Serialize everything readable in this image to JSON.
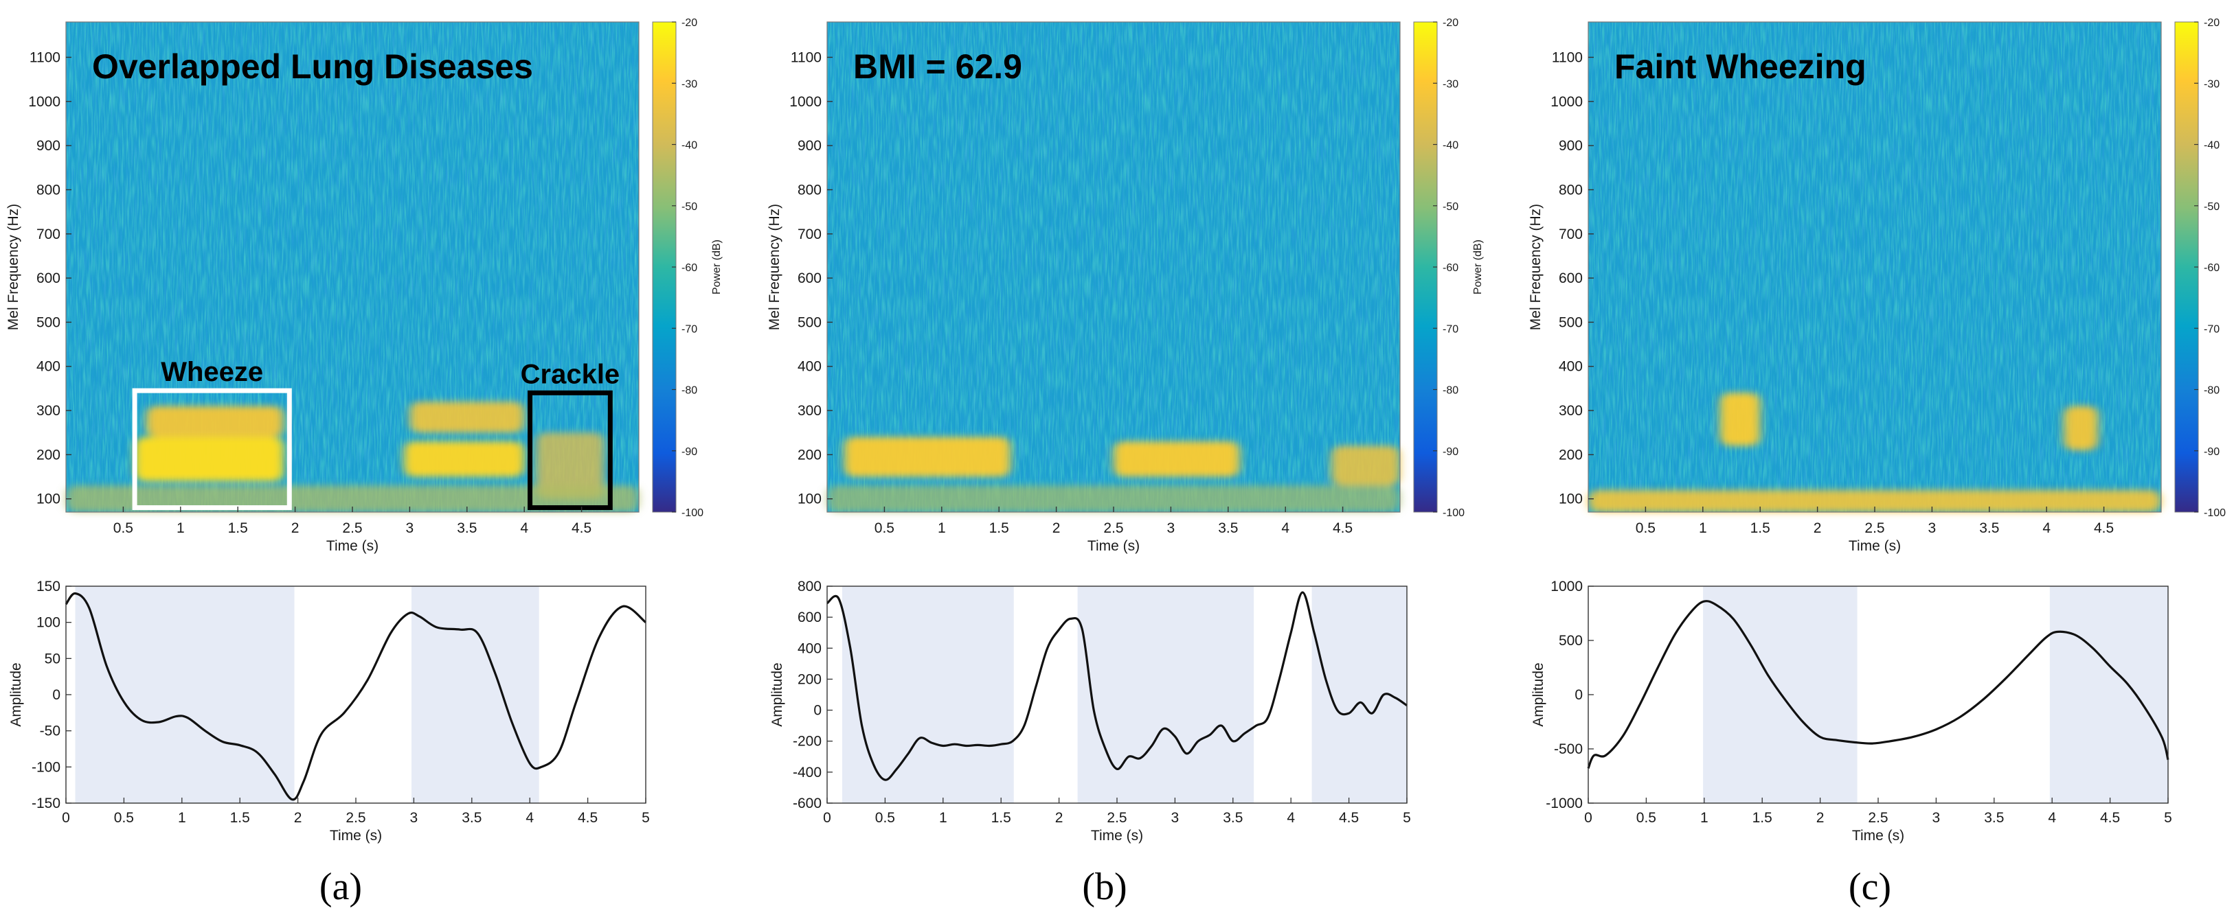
{
  "chart_data": [
    {
      "type": "heatmap",
      "panel": "a",
      "title": "Overlapped Lung Diseases",
      "xlabel": "Time (s)",
      "ylabel": "Mel Frequency (Hz)",
      "xticks": [
        0.5,
        1,
        1.5,
        2,
        2.5,
        3,
        3.5,
        4,
        4.5
      ],
      "xticklabels": [
        "0.5",
        "1",
        "1.5",
        "2",
        "2.5",
        "3",
        "3.5",
        "4",
        "4.5"
      ],
      "yticks": [
        100,
        200,
        300,
        400,
        500,
        600,
        700,
        800,
        900,
        1000,
        1100
      ],
      "yticklabels": [
        "100",
        "200",
        "300",
        "400",
        "500",
        "600",
        "700",
        "800",
        "900",
        "1000",
        "1100"
      ],
      "xlim": [
        0,
        5
      ],
      "ylim": [
        70,
        1180
      ],
      "colorbar": {
        "label": "Power (dB)",
        "range": [
          -100,
          -20
        ],
        "ticks": [
          "-20",
          "-30",
          "-40",
          "-50",
          "-60",
          "-70",
          "-80",
          "-90",
          "-100"
        ]
      },
      "bands": [
        {
          "t0": 0.6,
          "t1": 1.9,
          "f0": 140,
          "f1": 240,
          "level": 0.95
        },
        {
          "t0": 0.7,
          "t1": 1.9,
          "f0": 240,
          "f1": 310,
          "level": 0.8
        },
        {
          "t0": 2.95,
          "t1": 4.0,
          "f0": 150,
          "f1": 230,
          "level": 0.9
        },
        {
          "t0": 3.0,
          "t1": 4.0,
          "f0": 250,
          "f1": 320,
          "level": 0.75
        },
        {
          "t0": 4.1,
          "t1": 4.7,
          "f0": 100,
          "f1": 250,
          "level": 0.55
        },
        {
          "t0": 0.0,
          "t1": 5.0,
          "f0": 70,
          "f1": 130,
          "level": 0.35
        }
      ],
      "annotations": [
        {
          "label": "Wheeze",
          "t0": 0.6,
          "t1": 1.95,
          "f0": 80,
          "f1": 345,
          "color": "#ffffff"
        },
        {
          "label": "Crackle",
          "t0": 4.05,
          "t1": 4.75,
          "f0": 80,
          "f1": 340,
          "color": "#000000"
        }
      ]
    },
    {
      "type": "heatmap",
      "panel": "b",
      "title": "BMI = 62.9",
      "xlabel": "Time (s)",
      "ylabel": "Mel Frequency (Hz)",
      "xticks": [
        0.5,
        1,
        1.5,
        2,
        2.5,
        3,
        3.5,
        4,
        4.5
      ],
      "xticklabels": [
        "0.5",
        "1",
        "1.5",
        "2",
        "2.5",
        "3",
        "3.5",
        "4",
        "4.5"
      ],
      "yticks": [
        100,
        200,
        300,
        400,
        500,
        600,
        700,
        800,
        900,
        1000,
        1100
      ],
      "yticklabels": [
        "100",
        "200",
        "300",
        "400",
        "500",
        "600",
        "700",
        "800",
        "900",
        "1000",
        "1100"
      ],
      "xlim": [
        0,
        5
      ],
      "ylim": [
        70,
        1180
      ],
      "colorbar": {
        "label": "Power (dB)",
        "range": [
          -100,
          -20
        ],
        "ticks": [
          "-20",
          "-30",
          "-40",
          "-50",
          "-60",
          "-70",
          "-80",
          "-90",
          "-100"
        ]
      },
      "bands": [
        {
          "t0": 0.15,
          "t1": 1.6,
          "f0": 150,
          "f1": 240,
          "level": 0.85
        },
        {
          "t0": 2.5,
          "t1": 3.6,
          "f0": 150,
          "f1": 230,
          "level": 0.85
        },
        {
          "t0": 4.4,
          "t1": 5.0,
          "f0": 130,
          "f1": 220,
          "level": 0.7
        },
        {
          "t0": 0.0,
          "t1": 5.0,
          "f0": 70,
          "f1": 130,
          "level": 0.3
        }
      ],
      "annotations": []
    },
    {
      "type": "heatmap",
      "panel": "c",
      "title": "Faint Wheezing",
      "xlabel": "Time (s)",
      "ylabel": "Mel Frequency (Hz)",
      "xticks": [
        0.5,
        1,
        1.5,
        2,
        2.5,
        3,
        3.5,
        4,
        4.5
      ],
      "xticklabels": [
        "0.5",
        "1",
        "1.5",
        "2",
        "2.5",
        "3",
        "3.5",
        "4",
        "4.5"
      ],
      "yticks": [
        100,
        200,
        300,
        400,
        500,
        600,
        700,
        800,
        900,
        1000,
        1100
      ],
      "yticklabels": [
        "100",
        "200",
        "300",
        "400",
        "500",
        "600",
        "700",
        "800",
        "900",
        "1000",
        "1100"
      ],
      "xlim": [
        0,
        5
      ],
      "ylim": [
        70,
        1180
      ],
      "colorbar": {
        "label": "",
        "range": [
          -100,
          -20
        ],
        "ticks": [
          "-20",
          "-30",
          "-40",
          "-50",
          "-60",
          "-70",
          "-80",
          "-90",
          "-100"
        ]
      },
      "bands": [
        {
          "t0": 1.15,
          "t1": 1.5,
          "f0": 220,
          "f1": 340,
          "level": 0.85
        },
        {
          "t0": 4.15,
          "t1": 4.45,
          "f0": 210,
          "f1": 310,
          "level": 0.8
        },
        {
          "t0": 0.0,
          "t1": 5.0,
          "f0": 70,
          "f1": 120,
          "level": 0.75
        }
      ],
      "annotations": []
    },
    {
      "type": "line",
      "panel": "a",
      "xlabel": "Time (s)",
      "ylabel": "Amplitude",
      "xlim": [
        0,
        5
      ],
      "ylim": [
        -150,
        150
      ],
      "xticks": [
        "0",
        "0.5",
        "1",
        "1.5",
        "2",
        "2.5",
        "3",
        "3.5",
        "4",
        "4.5",
        "5"
      ],
      "yticks": [
        "150",
        "100",
        "50",
        "0",
        "-50",
        "-100",
        "-150"
      ],
      "shaded_regions": [
        [
          0.08,
          1.97
        ],
        [
          2.98,
          4.08
        ]
      ],
      "x": [
        0,
        0.08,
        0.2,
        0.35,
        0.5,
        0.65,
        0.8,
        0.95,
        1.05,
        1.2,
        1.35,
        1.5,
        1.65,
        1.8,
        1.95,
        2.05,
        2.2,
        2.4,
        2.6,
        2.8,
        2.95,
        3.05,
        3.2,
        3.4,
        3.55,
        3.7,
        3.85,
        4.0,
        4.1,
        4.25,
        4.4,
        4.6,
        4.8,
        5.0
      ],
      "y": [
        125,
        140,
        120,
        40,
        -10,
        -35,
        -38,
        -30,
        -32,
        -50,
        -65,
        -70,
        -80,
        -110,
        -145,
        -120,
        -55,
        -25,
        20,
        85,
        112,
        108,
        93,
        90,
        85,
        30,
        -40,
        -95,
        -100,
        -80,
        -10,
        80,
        122,
        100
      ]
    },
    {
      "type": "line",
      "panel": "b",
      "xlabel": "Time (s)",
      "ylabel": "Amplitude",
      "xlim": [
        0,
        5
      ],
      "ylim": [
        -600,
        800
      ],
      "xticks": [
        "0",
        "0.5",
        "1",
        "1.5",
        "2",
        "2.5",
        "3",
        "3.5",
        "4",
        "4.5",
        "5"
      ],
      "yticks": [
        "800",
        "600",
        "400",
        "200",
        "0",
        "-200",
        "-400",
        "-600"
      ],
      "shaded_regions": [
        [
          0.13,
          1.61
        ],
        [
          2.16,
          3.68
        ],
        [
          4.18,
          5.0
        ]
      ],
      "x": [
        0,
        0.1,
        0.2,
        0.3,
        0.4,
        0.5,
        0.6,
        0.7,
        0.8,
        0.9,
        1.0,
        1.1,
        1.2,
        1.3,
        1.4,
        1.5,
        1.6,
        1.7,
        1.8,
        1.9,
        2.0,
        2.1,
        2.2,
        2.3,
        2.4,
        2.5,
        2.6,
        2.7,
        2.8,
        2.9,
        3.0,
        3.1,
        3.2,
        3.3,
        3.4,
        3.5,
        3.6,
        3.7,
        3.8,
        3.9,
        4.0,
        4.1,
        4.2,
        4.3,
        4.4,
        4.5,
        4.6,
        4.7,
        4.8,
        4.9,
        5.0
      ],
      "y": [
        690,
        720,
        400,
        -100,
        -350,
        -450,
        -380,
        -280,
        -180,
        -210,
        -230,
        -220,
        -230,
        -225,
        -230,
        -220,
        -200,
        -100,
        150,
        400,
        520,
        590,
        520,
        0,
        -250,
        -380,
        -300,
        -310,
        -230,
        -120,
        -170,
        -280,
        -200,
        -160,
        -100,
        -200,
        -150,
        -100,
        -50,
        200,
        500,
        760,
        500,
        200,
        0,
        -20,
        50,
        -20,
        100,
        80,
        30
      ]
    },
    {
      "type": "line",
      "panel": "c",
      "xlabel": "Time (s)",
      "ylabel": "Amplitude",
      "xlim": [
        0,
        5
      ],
      "ylim": [
        -1000,
        1000
      ],
      "xticks": [
        "0",
        "0.5",
        "1",
        "1.5",
        "2",
        "2.5",
        "3",
        "3.5",
        "4",
        "4.5",
        "5"
      ],
      "yticks": [
        "1000",
        "500",
        "0",
        "-500",
        "-1000"
      ],
      "shaded_regions": [
        [
          0.99,
          2.32
        ],
        [
          3.98,
          5.0
        ]
      ],
      "x": [
        0,
        0.05,
        0.15,
        0.3,
        0.45,
        0.6,
        0.75,
        0.9,
        1.0,
        1.1,
        1.25,
        1.4,
        1.55,
        1.7,
        1.85,
        2.0,
        2.15,
        2.3,
        2.45,
        2.6,
        2.8,
        3.0,
        3.2,
        3.4,
        3.6,
        3.8,
        3.95,
        4.05,
        4.2,
        4.35,
        4.5,
        4.65,
        4.8,
        4.95,
        5.0
      ],
      "y": [
        -680,
        -560,
        -560,
        -380,
        -80,
        250,
        560,
        780,
        860,
        830,
        700,
        460,
        180,
        -50,
        -250,
        -390,
        -420,
        -440,
        -450,
        -430,
        -390,
        -320,
        -210,
        -50,
        150,
        370,
        530,
        580,
        550,
        430,
        260,
        100,
        -120,
        -400,
        -600
      ]
    }
  ],
  "captions": [
    "(a)",
    "(b)",
    "(c)"
  ]
}
